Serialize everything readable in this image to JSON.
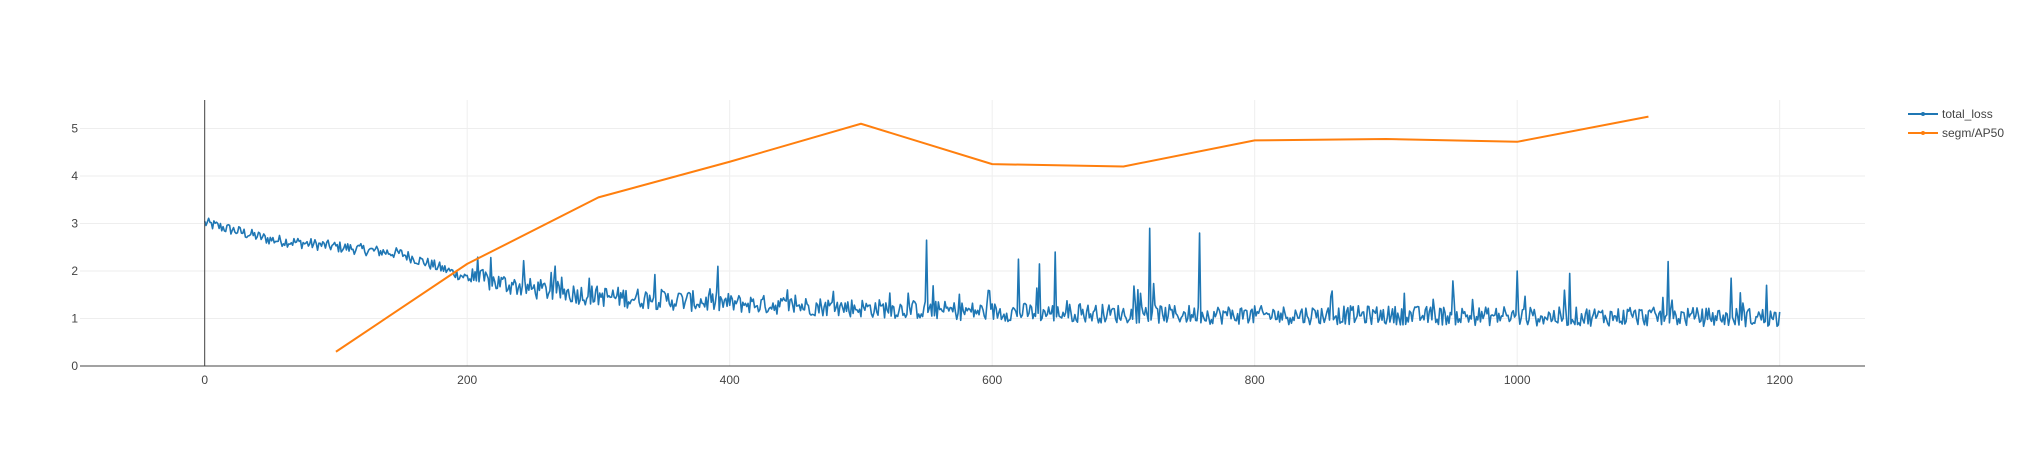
{
  "chart_data": {
    "type": "line",
    "title": "",
    "xlabel": "",
    "ylabel": "",
    "xlim": [
      -95,
      1265
    ],
    "ylim": [
      0,
      5.6
    ],
    "x_ticks": [
      0,
      200,
      400,
      600,
      800,
      1000,
      1200
    ],
    "y_ticks": [
      0,
      1,
      2,
      3,
      4,
      5
    ],
    "x_tick_labels": [
      "0",
      "200",
      "400",
      "600",
      "800",
      "1000",
      "1200"
    ],
    "y_tick_labels": [
      "0",
      "1",
      "2",
      "3",
      "4",
      "5"
    ],
    "grid": true,
    "legend_position": "top-right",
    "series": [
      {
        "name": "total_loss",
        "color": "#1f77b4",
        "trend": {
          "x": [
            0,
            50,
            100,
            150,
            200,
            250,
            300,
            400,
            500,
            600,
            700,
            800,
            900,
            1000,
            1100,
            1200
          ],
          "y": [
            3.0,
            2.65,
            2.5,
            2.35,
            1.85,
            1.6,
            1.45,
            1.3,
            1.2,
            1.12,
            1.08,
            1.05,
            1.05,
            1.02,
            1.02,
            1.0
          ]
        },
        "spikes": [
          {
            "x": 720,
            "y": 2.9
          },
          {
            "x": 758,
            "y": 2.8
          },
          {
            "x": 550,
            "y": 2.65
          },
          {
            "x": 648,
            "y": 2.4
          },
          {
            "x": 1115,
            "y": 2.2
          },
          {
            "x": 1163,
            "y": 1.85
          },
          {
            "x": 620,
            "y": 2.25
          },
          {
            "x": 636,
            "y": 2.15
          },
          {
            "x": 1040,
            "y": 1.95
          },
          {
            "x": 1000,
            "y": 2.0
          },
          {
            "x": 1190,
            "y": 1.7
          }
        ]
      },
      {
        "name": "segm/AP50",
        "color": "#ff7f0e",
        "x": [
          100,
          200,
          300,
          400,
          500,
          600,
          700,
          800,
          900,
          1000,
          1100
        ],
        "y": [
          0.3,
          2.15,
          3.55,
          4.3,
          5.1,
          4.25,
          4.2,
          4.75,
          4.78,
          4.72,
          5.25
        ]
      }
    ]
  }
}
